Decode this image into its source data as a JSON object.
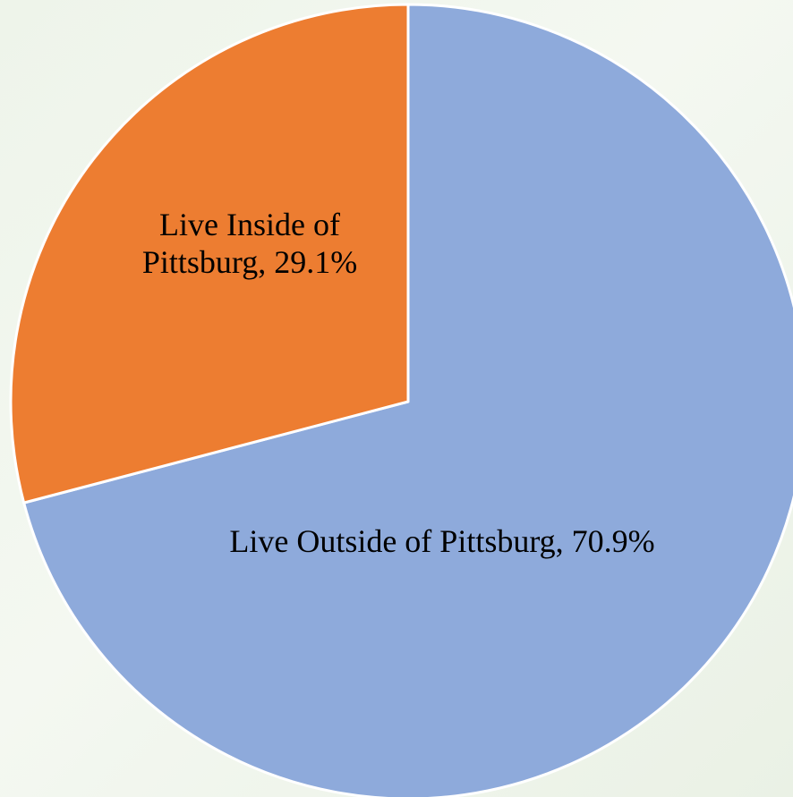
{
  "chart_data": {
    "type": "pie",
    "title": "",
    "start_angle_deg": 0,
    "direction": "clockwise",
    "legend": "none",
    "slices": [
      {
        "label": "Live Outside of Pittsburg",
        "value": 70.9,
        "display": "70.9%",
        "color": "#8eaadb",
        "label_lines": [
          "Live Outside of Pittsburg, 70.9%"
        ]
      },
      {
        "label": "Live Inside of Pittsburg",
        "value": 29.1,
        "display": "29.1%",
        "color": "#ed7d31",
        "label_lines": [
          "Live Inside of",
          "Pittsburg, 29.1%"
        ]
      }
    ]
  }
}
